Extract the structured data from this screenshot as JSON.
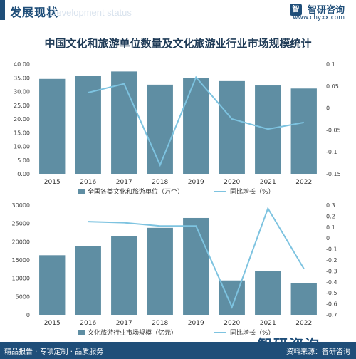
{
  "header": {
    "title": "发展现状",
    "subtitle": "Development status"
  },
  "brand": {
    "logo_text": "智",
    "name": "智研咨询",
    "url": "www.chyxx.com"
  },
  "title": "中国文化和旅游单位数量及文化旅游业行业市场规模统计",
  "footer": {
    "left": "精品报告 · 专项定制 · 品质服务",
    "right": "资料来源：智研咨询",
    "brand": "智研咨询"
  },
  "colors": {
    "bar": "#5f8ea3",
    "line": "#7dc3e0",
    "accent": "#1f4e79"
  },
  "chart_data": [
    {
      "type": "bar",
      "categories": [
        "2015",
        "2016",
        "2017",
        "2018",
        "2019",
        "2020",
        "2021",
        "2022"
      ],
      "series": [
        {
          "name": "全国各类文化和旅游单位（万个）",
          "type": "bar",
          "axis": "left",
          "values": [
            34.6,
            35.6,
            37.3,
            32.5,
            35.0,
            33.8,
            32.2,
            31.1
          ]
        },
        {
          "name": "同比增长（%）",
          "type": "line",
          "axis": "right",
          "values": [
            null,
            0.035,
            0.055,
            -0.13,
            0.07,
            -0.025,
            -0.048,
            -0.033
          ]
        }
      ],
      "ylim": [
        0,
        40
      ],
      "yticks": [
        "0.00",
        "5.00",
        "10.00",
        "15.00",
        "20.00",
        "25.00",
        "30.00",
        "35.00",
        "40.00"
      ],
      "y2lim": [
        -0.15,
        0.1
      ],
      "y2ticks": [
        "-0.15",
        "-0.1",
        "-0.05",
        "0",
        "0.05",
        "0.1"
      ],
      "legend": "bottom"
    },
    {
      "type": "bar",
      "categories": [
        "2015",
        "2016",
        "2017",
        "2018",
        "2019",
        "2020",
        "2021",
        "2022"
      ],
      "series": [
        {
          "name": "文化旅游行业市场规模（亿元）",
          "type": "bar",
          "axis": "left",
          "values": [
            16300,
            18800,
            21500,
            23800,
            26500,
            9400,
            12000,
            8600
          ]
        },
        {
          "name": "同比增长（%）",
          "type": "line",
          "axis": "right",
          "values": [
            null,
            0.15,
            0.14,
            0.11,
            0.11,
            -0.63,
            0.27,
            -0.28
          ]
        }
      ],
      "ylim": [
        0,
        30000
      ],
      "yticks": [
        "0",
        "5000",
        "10000",
        "15000",
        "20000",
        "25000",
        "30000"
      ],
      "y2lim": [
        -0.7,
        0.3
      ],
      "y2ticks": [
        "-0.7",
        "-0.6",
        "-0.5",
        "-0.4",
        "-0.3",
        "-0.2",
        "-0.1",
        "0",
        "0.1",
        "0.2",
        "0.3"
      ],
      "legend": "bottom"
    }
  ]
}
